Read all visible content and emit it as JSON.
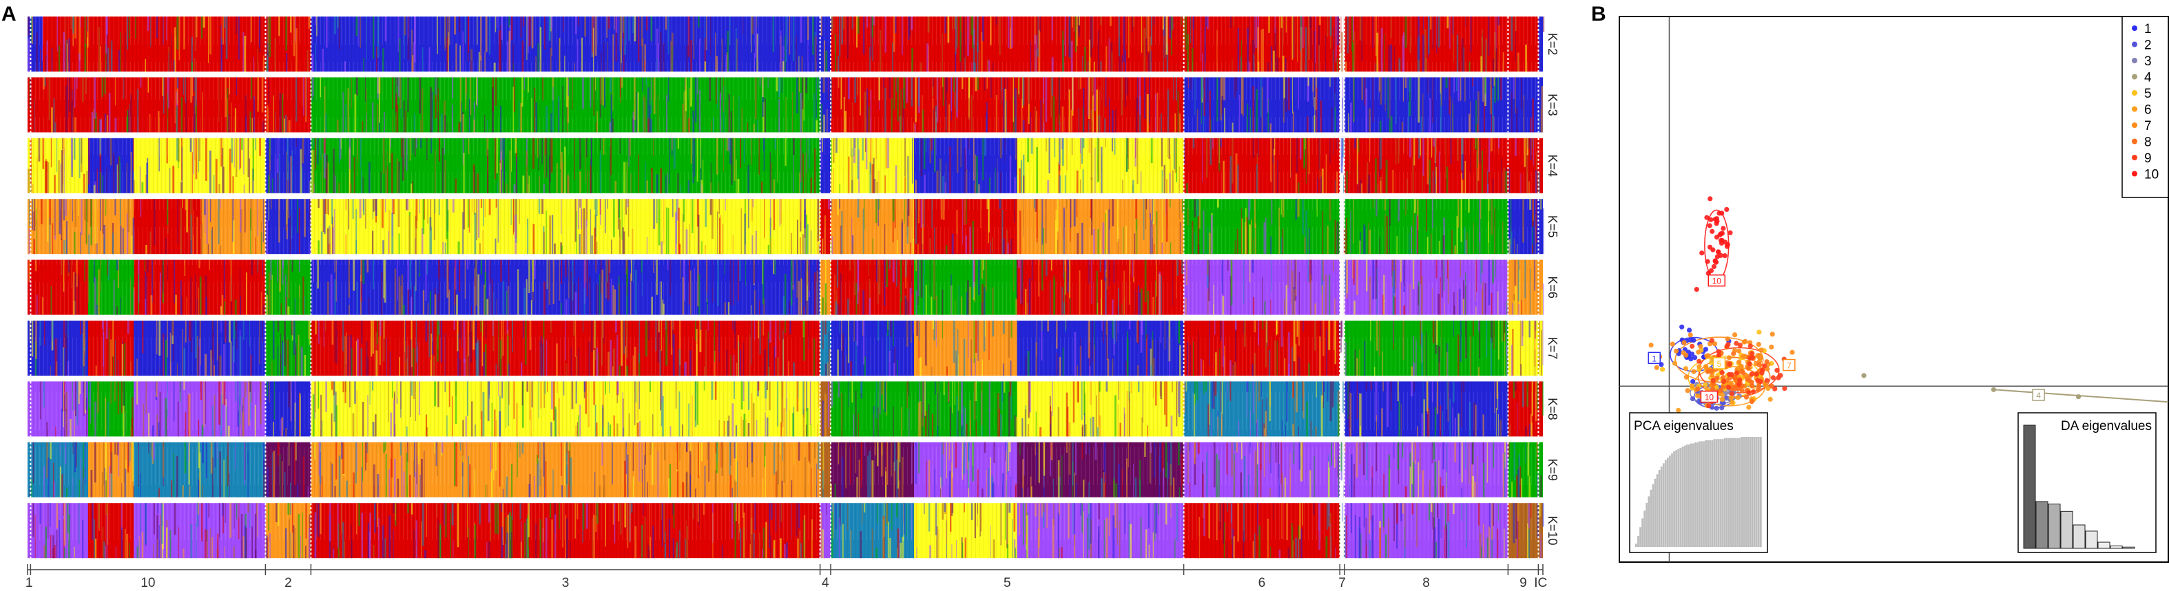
{
  "panel_labels": {
    "a": "A",
    "b": "B"
  },
  "chart_data": [
    {
      "type": "bar",
      "subtype": "stacked-admixture",
      "rows": [
        "K=2",
        "K=3",
        "K=4",
        "K=5",
        "K=6",
        "K=7",
        "K=8",
        "K=9",
        "K=10"
      ],
      "groups": [
        {
          "label": "1",
          "start": 0.0,
          "end": 0.2
        },
        {
          "label": "10",
          "start": 0.2,
          "end": 15.7
        },
        {
          "label": "2",
          "start": 15.7,
          "end": 18.7
        },
        {
          "label": "3",
          "start": 18.7,
          "end": 52.3
        },
        {
          "label": "4",
          "start": 52.3,
          "end": 53.0
        },
        {
          "label": "5",
          "start": 53.0,
          "end": 76.3
        },
        {
          "label": "6",
          "start": 76.3,
          "end": 86.6
        },
        {
          "label": "7",
          "start": 86.6,
          "end": 86.9
        },
        {
          "label": "8",
          "start": 86.9,
          "end": 97.7
        },
        {
          "label": "9",
          "start": 97.7,
          "end": 99.7
        },
        {
          "label": "IC",
          "start": 99.7,
          "end": 100.0
        }
      ],
      "segments": [
        [
          [
            "b",
            0,
            1
          ],
          [
            "r",
            1,
            15.7
          ],
          [
            "r",
            15.7,
            18.7
          ],
          [
            "b",
            18.7,
            52.3
          ],
          [
            "b",
            52.3,
            53
          ],
          [
            "r",
            53,
            76.3
          ],
          [
            "r",
            76.3,
            86.6
          ],
          [
            "r",
            86.9,
            97.7
          ],
          [
            "r",
            97.7,
            99.7
          ],
          [
            "b",
            99.7,
            100
          ]
        ],
        [
          [
            "r",
            0,
            15.7
          ],
          [
            "r",
            15.7,
            18.7
          ],
          [
            "g",
            18.7,
            52.3
          ],
          [
            "b",
            52.3,
            53
          ],
          [
            "r",
            53,
            76.3
          ],
          [
            "b",
            76.3,
            86.6
          ],
          [
            "b",
            86.9,
            97.7
          ],
          [
            "b",
            97.7,
            100
          ]
        ],
        [
          [
            "y",
            0,
            4
          ],
          [
            "b",
            4,
            7
          ],
          [
            "y",
            7,
            15.7
          ],
          [
            "b",
            15.7,
            18.7
          ],
          [
            "g",
            18.7,
            52.3
          ],
          [
            "b",
            52.3,
            53
          ],
          [
            "y",
            53,
            58.5
          ],
          [
            "b",
            58.5,
            65.3
          ],
          [
            "y",
            65.3,
            76.3
          ],
          [
            "r",
            76.3,
            86.6
          ],
          [
            "r",
            86.9,
            97.7
          ],
          [
            "r",
            97.7,
            100
          ]
        ],
        [
          [
            "o",
            0,
            7
          ],
          [
            "r",
            7,
            11.5
          ],
          [
            "o",
            11.5,
            15.7
          ],
          [
            "b",
            15.7,
            18.7
          ],
          [
            "y",
            18.7,
            52.3
          ],
          [
            "r",
            52.3,
            53
          ],
          [
            "o",
            53,
            58.5
          ],
          [
            "r",
            58.5,
            65.3
          ],
          [
            "o",
            65.3,
            76.3
          ],
          [
            "g",
            76.3,
            86.6
          ],
          [
            "g",
            86.9,
            97.7
          ],
          [
            "b",
            97.7,
            100
          ]
        ],
        [
          [
            "r",
            0,
            4
          ],
          [
            "g",
            4,
            7
          ],
          [
            "r",
            7,
            15.7
          ],
          [
            "g",
            15.7,
            18.7
          ],
          [
            "b",
            18.7,
            52.3
          ],
          [
            "o",
            52.3,
            53
          ],
          [
            "r",
            53,
            58.5
          ],
          [
            "g",
            58.5,
            65.3
          ],
          [
            "r",
            65.3,
            76.3
          ],
          [
            "v",
            76.3,
            86.6
          ],
          [
            "v",
            86.9,
            97.7
          ],
          [
            "o",
            97.7,
            100
          ]
        ],
        [
          [
            "b",
            0,
            4
          ],
          [
            "r",
            4,
            7
          ],
          [
            "b",
            7,
            15.7
          ],
          [
            "g",
            15.7,
            18.7
          ],
          [
            "r",
            18.7,
            52.3
          ],
          [
            "t",
            52.3,
            53
          ],
          [
            "b",
            53,
            58.5
          ],
          [
            "o",
            58.5,
            65.3
          ],
          [
            "b",
            65.3,
            76.3
          ],
          [
            "r",
            76.3,
            86.6
          ],
          [
            "g",
            86.9,
            97.7
          ],
          [
            "y",
            97.7,
            100
          ]
        ],
        [
          [
            "v",
            0,
            4
          ],
          [
            "g",
            4,
            7
          ],
          [
            "v",
            7,
            15.7
          ],
          [
            "b",
            15.7,
            18.7
          ],
          [
            "y",
            18.7,
            52.3
          ],
          [
            "n",
            52.3,
            53
          ],
          [
            "g",
            53,
            58.5
          ],
          [
            "g",
            58.5,
            65.3
          ],
          [
            "y",
            65.3,
            76.3
          ],
          [
            "t",
            76.3,
            86.6
          ],
          [
            "b",
            86.9,
            97.7
          ],
          [
            "r",
            97.7,
            100
          ]
        ],
        [
          [
            "t",
            0,
            4
          ],
          [
            "o",
            4,
            7
          ],
          [
            "t",
            7,
            15.7
          ],
          [
            "p",
            15.7,
            18.7
          ],
          [
            "o",
            18.7,
            52.3
          ],
          [
            "n",
            52.3,
            53
          ],
          [
            "p",
            53,
            58.5
          ],
          [
            "v",
            58.5,
            65.3
          ],
          [
            "p",
            65.3,
            76.3
          ],
          [
            "v",
            76.3,
            86.6
          ],
          [
            "v",
            86.9,
            97.7
          ],
          [
            "g",
            97.7,
            100
          ]
        ],
        [
          [
            "v",
            0,
            4
          ],
          [
            "r",
            4,
            7
          ],
          [
            "v",
            7,
            15.7
          ],
          [
            "o",
            15.7,
            18.7
          ],
          [
            "r",
            18.7,
            52.3
          ],
          [
            "v",
            52.3,
            53
          ],
          [
            "t",
            53,
            58.5
          ],
          [
            "y",
            58.5,
            65.3
          ],
          [
            "v",
            65.3,
            76.3
          ],
          [
            "r",
            76.3,
            86.6
          ],
          [
            "v",
            86.9,
            97.7
          ],
          [
            "n",
            97.7,
            100
          ]
        ]
      ],
      "palette": {
        "b": "#2424d8",
        "r": "#e00000",
        "g": "#00b000",
        "y": "#ffff1e",
        "o": "#ff9a1e",
        "v": "#a24cff",
        "t": "#1a86b8",
        "n": "#b4661e",
        "p": "#6a0a5c"
      }
    },
    {
      "type": "scatter",
      "subtype": "DAPC",
      "legend": [
        "1",
        "2",
        "3",
        "4",
        "5",
        "6",
        "7",
        "8",
        "9",
        "10"
      ],
      "legend_colors": [
        "#2d2df0",
        "#5454d8",
        "#8080b4",
        "#a8a07a",
        "#ffc01a",
        "#ff9c1a",
        "#ff8c1a",
        "#ff6e1a",
        "#ff3c1a",
        "#ff1a1a"
      ],
      "legend_placement": "top-right",
      "xlim": [
        -1,
        10
      ],
      "ylim": [
        -10,
        21
      ],
      "clusters": [
        {
          "label": "1",
          "center": [
            0.5,
            1.8
          ],
          "spread": [
            0.6,
            1.2
          ],
          "n": 30
        },
        {
          "label": "2",
          "center": [
            0.9,
            -0.6
          ],
          "spread": [
            0.5,
            0.8
          ],
          "n": 25
        },
        {
          "label": "3",
          "center": [
            0.9,
            -0.4
          ],
          "spread": [
            0.6,
            0.8
          ],
          "n": 25
        },
        {
          "label": "5",
          "center": [
            1.1,
            0.5
          ],
          "spread": [
            0.9,
            1.5
          ],
          "n": 55
        },
        {
          "label": "6",
          "center": [
            1.2,
            0.0
          ],
          "spread": [
            0.9,
            1.4
          ],
          "n": 45
        },
        {
          "label": "7",
          "center": [
            1.0,
            1.5
          ],
          "spread": [
            1.1,
            1.6
          ],
          "n": 70
        },
        {
          "label": "8",
          "center": [
            1.3,
            0.5
          ],
          "spread": [
            0.9,
            1.4
          ],
          "n": 55
        },
        {
          "label": "9",
          "center": [
            1.4,
            0.9
          ],
          "spread": [
            1.0,
            1.6
          ],
          "n": 45
        },
        {
          "label": "10",
          "center": [
            0.95,
            8.0
          ],
          "spread": [
            0.3,
            2.5
          ],
          "n": 40
        }
      ],
      "cluster_labels": [
        {
          "label": "1",
          "x": -0.3,
          "y": 1.6
        },
        {
          "label": "5",
          "x": 1.0,
          "y": 1.3
        },
        {
          "label": "7",
          "x": 2.4,
          "y": 1.2
        },
        {
          "label": "10",
          "x": 0.8,
          "y": -0.6
        },
        {
          "label": "10",
          "x": 0.95,
          "y": 6.0
        },
        {
          "label": "4",
          "x": 7.4,
          "y": -0.5
        }
      ],
      "outlier_points": [
        {
          "label": "4",
          "x": 3.9,
          "y": 0.6
        },
        {
          "label": "4",
          "x": 6.5,
          "y": -0.2
        },
        {
          "label": "4",
          "x": 8.2,
          "y": -0.6
        }
      ],
      "pca_eigen_title": "PCA eigenvalues",
      "pca_eigenvalues": [
        3,
        10,
        18,
        26,
        33,
        40,
        46,
        52,
        57,
        62,
        66,
        70,
        73,
        76,
        79,
        81,
        83,
        85,
        87,
        88,
        89,
        90,
        91,
        92,
        93,
        93,
        94,
        94,
        95,
        95,
        96,
        96,
        96,
        97,
        97,
        97,
        97,
        98,
        98,
        98,
        98,
        98,
        99,
        99,
        99,
        99,
        99,
        99,
        99,
        99,
        100,
        100,
        100,
        100,
        100,
        100,
        100,
        100,
        100,
        100
      ],
      "da_eigen_title": "DA eigenvalues",
      "da_eigenvalues": [
        100,
        38,
        36,
        30,
        19,
        14,
        5,
        2,
        1
      ],
      "da_eigen_colors": [
        "#5c5c5c",
        "#8a8a8a",
        "#b0b0b0",
        "#d0d0d0",
        "#e0e0e0",
        "#e8e8e8",
        "#eeeeee",
        "#f2f2f2",
        "#f5f5f5"
      ]
    }
  ]
}
